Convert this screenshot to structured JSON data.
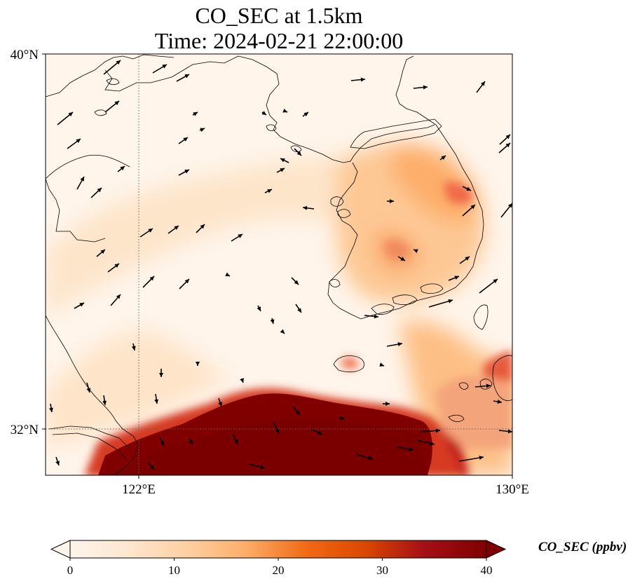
{
  "title": {
    "line1": "CO_SEC at 1.5km",
    "line2": "Time: 2024-02-21 22:00:00"
  },
  "map": {
    "extent": {
      "lon_min": 120,
      "lon_max": 130,
      "lat_min": 31,
      "lat_max": 40
    },
    "gridlines": {
      "lon": 122,
      "lat": 32,
      "style": "dotted"
    },
    "lat_labels": [
      "40°N",
      "32°N"
    ],
    "lon_labels": [
      "122°E",
      "130°E"
    ]
  },
  "colorbar": {
    "label": "CO_SEC (ppbv)",
    "ticks": [
      "0",
      "10",
      "20",
      "30",
      "40"
    ],
    "min": 0,
    "max": 40,
    "colors": [
      "#fff5eb",
      "#fee6ce",
      "#fdd0a2",
      "#fdae6b",
      "#f16913",
      "#d94801",
      "#a50f15",
      "#7f0000"
    ]
  }
}
